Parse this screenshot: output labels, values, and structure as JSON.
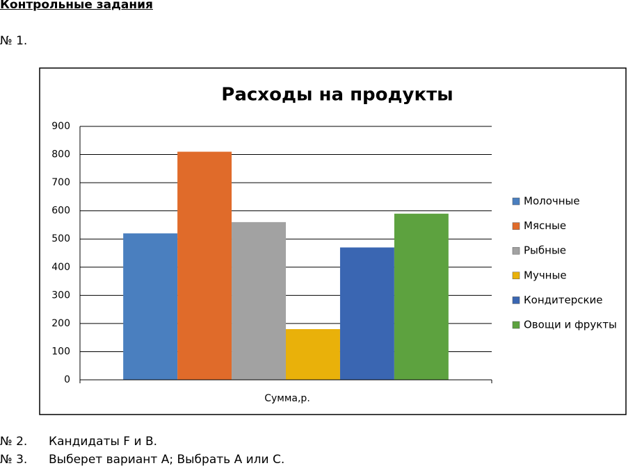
{
  "header": {
    "title": "Контрольные задания"
  },
  "task1": {
    "number": "№ 1."
  },
  "chart_data": {
    "type": "bar",
    "title": "Расходы на продукты",
    "x_label": "Сумма,р.",
    "categories": [
      "Сумма,р."
    ],
    "series": [
      {
        "name": "Молочные",
        "color": "#4a7fbf",
        "values": [
          520
        ]
      },
      {
        "name": "Мясные",
        "color": "#e06b2a",
        "values": [
          810
        ]
      },
      {
        "name": "Рыбные",
        "color": "#a2a2a2",
        "values": [
          560
        ]
      },
      {
        "name": "Мучные",
        "color": "#e9b10a",
        "values": [
          180
        ]
      },
      {
        "name": "Кондитерские",
        "color": "#3a66b2",
        "values": [
          470
        ]
      },
      {
        "name": "Овощи и фрукты",
        "color": "#5da23f",
        "values": [
          590
        ]
      }
    ],
    "ylim": [
      0,
      900
    ],
    "yticks": [
      0,
      100,
      200,
      300,
      400,
      500,
      600,
      700,
      800,
      900
    ],
    "grid": true,
    "legend": "right"
  },
  "answers": [
    {
      "number": "№ 2.",
      "text": "Кандидаты F и B."
    },
    {
      "number": "№ 3.",
      "text": "Выберет вариант А; Выбрать А или С."
    }
  ]
}
